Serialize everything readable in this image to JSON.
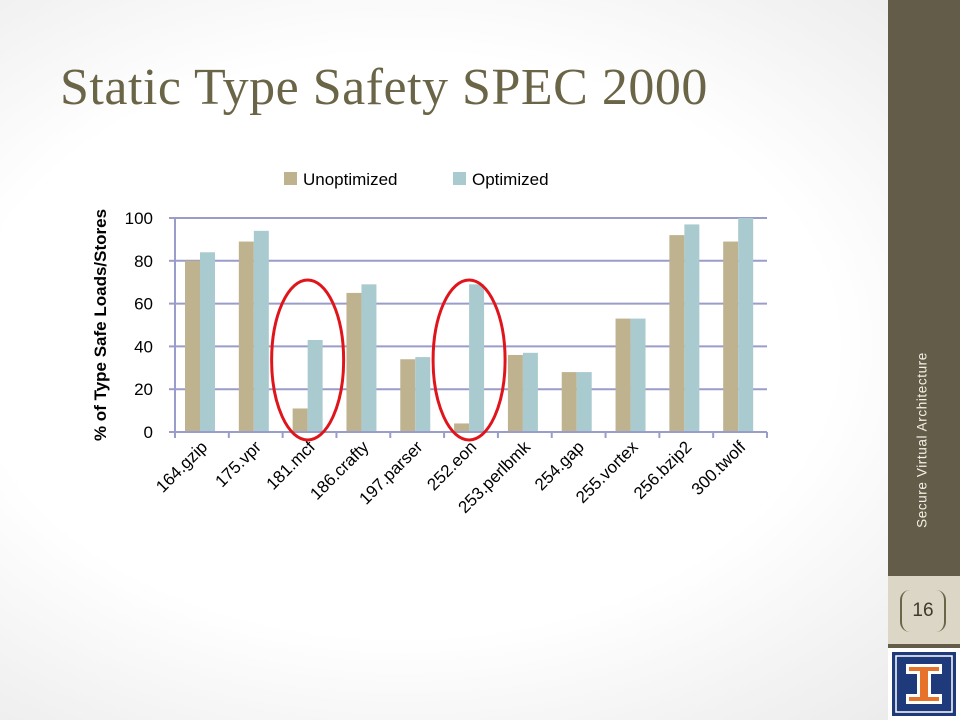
{
  "slide": {
    "title": "Static Type Safety SPEC 2000",
    "footer": "Secure Virtual Architecture",
    "page_number": "16"
  },
  "colors": {
    "unoptimized": "#bfb38f",
    "optimized": "#a9cbd0",
    "gridline": "#9a9cc9",
    "highlight": "#e0151b",
    "sidebar": "#625c48",
    "title": "#6b6548"
  },
  "icons": {
    "logo": "illinois-block-i-icon"
  },
  "chart_data": {
    "type": "bar",
    "title": "",
    "xlabel": "",
    "ylabel": "% of Type Safe Loads/Stores",
    "ylim": [
      0,
      100
    ],
    "yticks": [
      0,
      20,
      40,
      60,
      80,
      100
    ],
    "grid": true,
    "legend_position": "top",
    "categories": [
      "164.gzip",
      "175.vpr",
      "181.mcf",
      "186.crafty",
      "197.parser",
      "252.eon",
      "253.perlbmk",
      "254.gap",
      "255.vortex",
      "256.bzip2",
      "300.twolf"
    ],
    "series": [
      {
        "name": "Unoptimized",
        "values": [
          80,
          89,
          11,
          65,
          34,
          4,
          36,
          28,
          53,
          92,
          89
        ]
      },
      {
        "name": "Optimized",
        "values": [
          84,
          94,
          43,
          69,
          35,
          69,
          37,
          28,
          53,
          97,
          100
        ]
      }
    ],
    "annotations": [
      {
        "type": "ellipse",
        "category": "181.mcf"
      },
      {
        "type": "ellipse",
        "category": "252.eon"
      }
    ]
  }
}
